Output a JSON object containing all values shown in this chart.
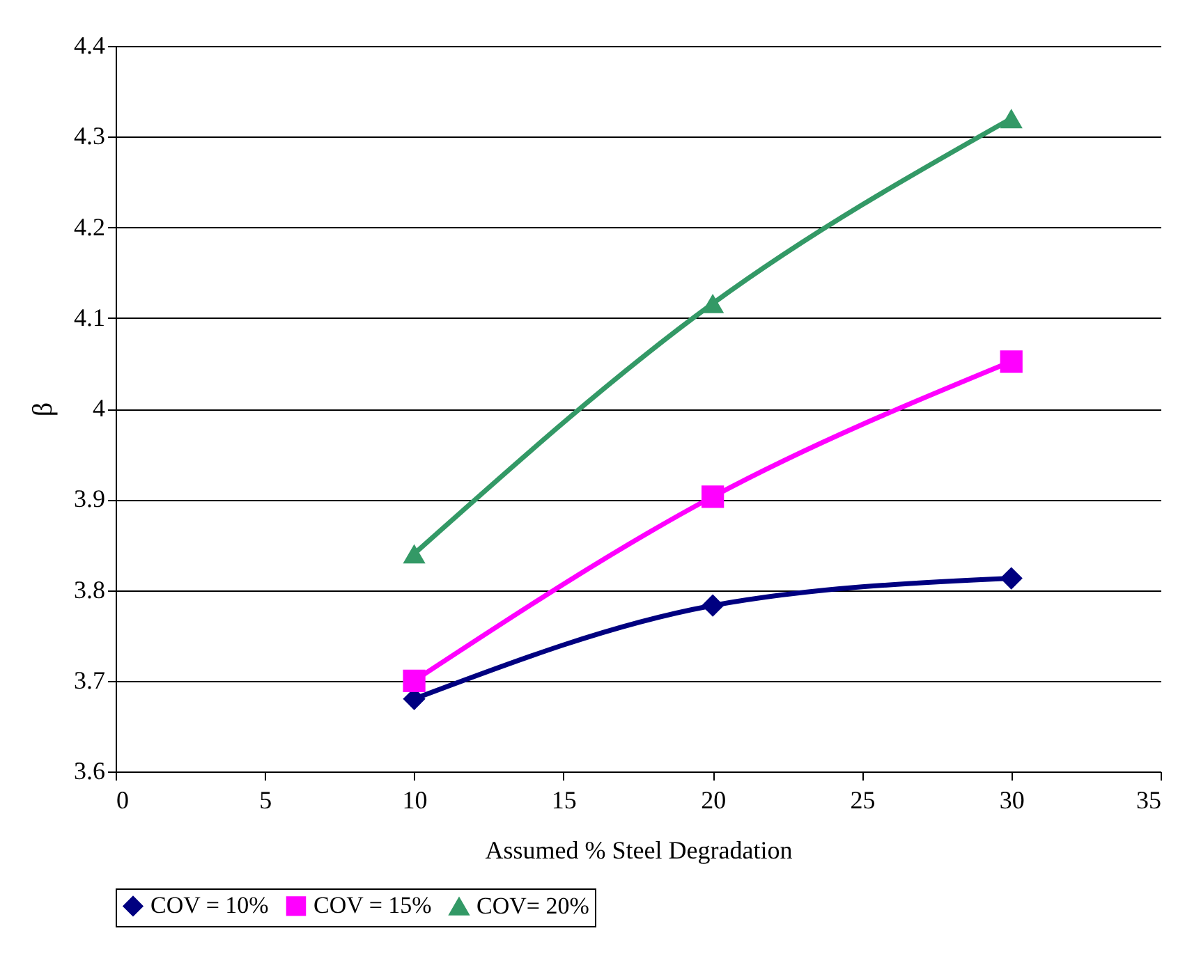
{
  "chart_data": {
    "type": "line",
    "xlabel": "Assumed % Steel Degradation",
    "ylabel": "β",
    "x": [
      10,
      20,
      30
    ],
    "series": [
      {
        "name": "COV = 10%",
        "color": "#000080",
        "marker": "diamond",
        "values": [
          3.68,
          3.783,
          3.813
        ]
      },
      {
        "name": "COV = 15%",
        "color": "#ff00ff",
        "marker": "square",
        "values": [
          3.7,
          3.903,
          4.052
        ]
      },
      {
        "name": "COV= 20%",
        "color": "#339966",
        "marker": "triangle",
        "values": [
          3.84,
          4.116,
          4.32
        ]
      }
    ],
    "xlim": [
      0,
      35
    ],
    "xticks": [
      0,
      5,
      10,
      15,
      20,
      25,
      30,
      35
    ],
    "ylim": [
      3.6,
      4.4
    ],
    "yticks": [
      3.6,
      3.7,
      3.8,
      3.9,
      4,
      4.1,
      4.2,
      4.3,
      4.4
    ],
    "grid": "y",
    "legend": "bottom",
    "line_style": "solid"
  }
}
